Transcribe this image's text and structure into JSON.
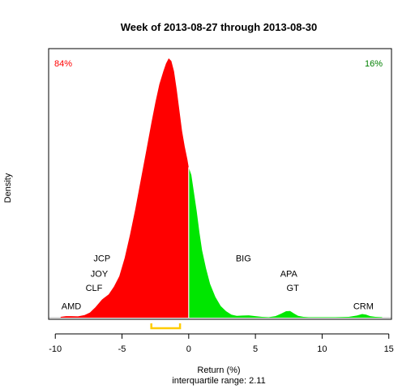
{
  "chart_data": {
    "type": "area",
    "title": "Week of 2013-08-27 through 2013-08-30",
    "xlabel": "Return (%)",
    "ylabel": "Density",
    "subtitle": "interquartile range: 2.11",
    "xlim": [
      -10.5,
      15.2
    ],
    "ylim": [
      0,
      1
    ],
    "xticks": [
      -10,
      -5,
      0,
      5,
      10,
      15
    ],
    "xtick_labels": [
      "-10",
      "-5",
      "0",
      "5",
      "10",
      "15"
    ],
    "split_at": 0,
    "grid": false,
    "negative_color": "#ff0000",
    "positive_color": "#00e600",
    "iqr_color": "#ffcc00",
    "baseline_color": "#bebebe",
    "negative_share": "84%",
    "positive_share": "16%",
    "iqr": [
      -2.8,
      -0.65
    ],
    "density": {
      "x": [
        -9.6,
        -9.2,
        -8.8,
        -8.3,
        -7.8,
        -7.4,
        -7.0,
        -6.5,
        -6.0,
        -5.6,
        -5.2,
        -4.8,
        -4.4,
        -4.0,
        -3.6,
        -3.2,
        -2.8,
        -2.5,
        -2.2,
        -1.9,
        -1.7,
        -1.5,
        -1.3,
        -1.1,
        -0.9,
        -0.7,
        -0.5,
        -0.3,
        -0.1,
        0.0,
        0.2,
        0.4,
        0.6,
        0.8,
        1.0,
        1.3,
        1.6,
        2.0,
        2.4,
        2.8,
        3.2,
        3.6,
        4.0,
        4.5,
        5.0,
        5.5,
        6.0,
        6.5,
        6.9,
        7.3,
        7.6,
        7.9,
        8.2,
        8.6,
        9.0,
        10.0,
        11.0,
        12.0,
        12.6,
        13.0,
        13.3,
        13.6,
        14.0,
        14.5
      ],
      "y": [
        0.003,
        0.006,
        0.006,
        0.005,
        0.01,
        0.02,
        0.04,
        0.07,
        0.09,
        0.12,
        0.16,
        0.23,
        0.32,
        0.42,
        0.53,
        0.64,
        0.75,
        0.83,
        0.9,
        0.95,
        0.98,
        1.0,
        0.99,
        0.95,
        0.88,
        0.8,
        0.72,
        0.66,
        0.61,
        0.58,
        0.55,
        0.48,
        0.41,
        0.33,
        0.26,
        0.19,
        0.13,
        0.08,
        0.045,
        0.025,
        0.012,
        0.007,
        0.008,
        0.009,
        0.006,
        0.003,
        0.002,
        0.006,
        0.015,
        0.025,
        0.026,
        0.016,
        0.007,
        0.003,
        0.002,
        0.002,
        0.002,
        0.003,
        0.008,
        0.014,
        0.012,
        0.006,
        0.003,
        0.002
      ]
    },
    "annotations": [
      {
        "label": "AMD",
        "x": -8.8,
        "y": 0.045
      },
      {
        "label": "CLF",
        "x": -7.1,
        "y": 0.115
      },
      {
        "label": "JOY",
        "x": -6.7,
        "y": 0.17
      },
      {
        "label": "JCP",
        "x": -6.5,
        "y": 0.23
      },
      {
        "label": "BIG",
        "x": 4.1,
        "y": 0.23
      },
      {
        "label": "APA",
        "x": 7.5,
        "y": 0.17
      },
      {
        "label": "GT",
        "x": 7.8,
        "y": 0.115
      },
      {
        "label": "CRM",
        "x": 13.1,
        "y": 0.045
      }
    ]
  }
}
